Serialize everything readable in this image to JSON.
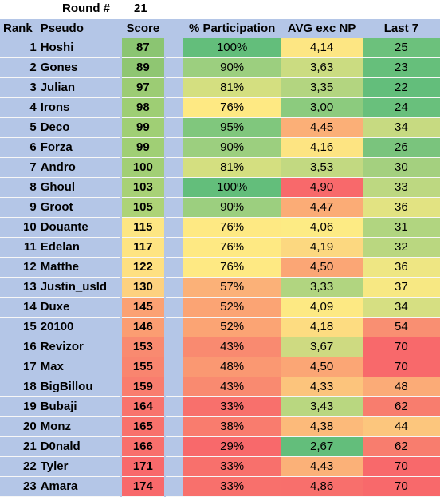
{
  "round": {
    "label": "Round #",
    "value": "21"
  },
  "columns": {
    "rank": "Rank",
    "pseudo": "Pseudo",
    "score": "Score",
    "participation": "% Participation",
    "avg": "AVG exc NP",
    "last7": "Last 7"
  },
  "rows": [
    {
      "rank": "1",
      "pseudo": "Hoshi",
      "score": "87",
      "participation": "100%",
      "avg": "4,14",
      "last7": "25",
      "score_color": "#8bc572",
      "part_color": "#63be7b",
      "avg_color": "#fde683",
      "last7_color": "#6cc17c"
    },
    {
      "rank": "2",
      "pseudo": "Gones",
      "score": "89",
      "participation": "90%",
      "avg": "3,63",
      "last7": "23",
      "score_color": "#8fc672",
      "part_color": "#9ccf7f",
      "avg_color": "#cbdc81",
      "last7_color": "#66bf7b"
    },
    {
      "rank": "3",
      "pseudo": "Julian",
      "score": "97",
      "participation": "81%",
      "avg": "3,35",
      "last7": "22",
      "score_color": "#9ccc74",
      "part_color": "#d4df80",
      "avg_color": "#b3d580",
      "last7_color": "#63be7b"
    },
    {
      "rank": "4",
      "pseudo": "Irons",
      "score": "98",
      "participation": "76%",
      "avg": "3,00",
      "last7": "24",
      "score_color": "#9ece74",
      "part_color": "#fee983",
      "avg_color": "#8ccb7e",
      "last7_color": "#69c07c"
    },
    {
      "rank": "5",
      "pseudo": "Deco",
      "score": "99",
      "participation": "95%",
      "avg": "4,45",
      "last7": "34",
      "score_color": "#a0cf75",
      "part_color": "#80c77d",
      "avg_color": "#fbaf77",
      "last7_color": "#c7da81"
    },
    {
      "rank": "6",
      "pseudo": "Forza",
      "score": "99",
      "participation": "90%",
      "avg": "4,16",
      "last7": "26",
      "score_color": "#a0cf75",
      "part_color": "#9ccf7f",
      "avg_color": "#fde482",
      "last7_color": "#7ac47d"
    },
    {
      "rank": "7",
      "pseudo": "Andro",
      "score": "100",
      "participation": "81%",
      "avg": "3,53",
      "last7": "30",
      "score_color": "#a2cf75",
      "part_color": "#d4df80",
      "avg_color": "#c2d981",
      "last7_color": "#a4d07f"
    },
    {
      "rank": "8",
      "pseudo": "Ghoul",
      "score": "103",
      "participation": "100%",
      "avg": "4,90",
      "last7": "33",
      "score_color": "#a8d176",
      "part_color": "#63be7b",
      "avg_color": "#f8696b",
      "last7_color": "#bdd881"
    },
    {
      "rank": "9",
      "pseudo": "Groot",
      "score": "105",
      "participation": "90%",
      "avg": "4,47",
      "last7": "36",
      "score_color": "#add377",
      "part_color": "#9ccf7f",
      "avg_color": "#fbac76",
      "last7_color": "#e2e382"
    },
    {
      "rank": "10",
      "pseudo": "Douante",
      "score": "115",
      "participation": "76%",
      "avg": "4,06",
      "last7": "31",
      "score_color": "#fde683",
      "part_color": "#fee983",
      "avg_color": "#fdeb84",
      "last7_color": "#b1d580"
    },
    {
      "rank": "11",
      "pseudo": "Edelan",
      "score": "117",
      "participation": "76%",
      "avg": "4,19",
      "last7": "32",
      "score_color": "#fee482",
      "part_color": "#fee983",
      "avg_color": "#fcd880",
      "last7_color": "#bad780"
    },
    {
      "rank": "12",
      "pseudo": "Matthe",
      "score": "122",
      "participation": "76%",
      "avg": "4,50",
      "last7": "36",
      "score_color": "#fee081",
      "part_color": "#fee983",
      "avg_color": "#fba675",
      "last7_color": "#eee683"
    },
    {
      "rank": "13",
      "pseudo": "Justin_usld",
      "score": "130",
      "participation": "57%",
      "avg": "3,33",
      "last7": "37",
      "score_color": "#fdd17f",
      "part_color": "#fbb178",
      "avg_color": "#b1d580",
      "last7_color": "#f7e883"
    },
    {
      "rank": "14",
      "pseudo": "Duxe",
      "score": "145",
      "participation": "52%",
      "avg": "4,09",
      "last7": "34",
      "score_color": "#fba173",
      "part_color": "#fba474",
      "avg_color": "#fde983",
      "last7_color": "#d6df82"
    },
    {
      "rank": "15",
      "pseudo": "20100",
      "score": "146",
      "participation": "52%",
      "avg": "4,18",
      "last7": "54",
      "score_color": "#fb9d72",
      "part_color": "#fba474",
      "avg_color": "#fddc81",
      "last7_color": "#f98f72"
    },
    {
      "rank": "16",
      "pseudo": "Revizor",
      "score": "153",
      "participation": "43%",
      "avg": "3,67",
      "last7": "70",
      "score_color": "#f98a70",
      "part_color": "#f98a70",
      "avg_color": "#ceda81",
      "last7_color": "#f8696b"
    },
    {
      "rank": "17",
      "pseudo": "Max",
      "score": "155",
      "participation": "48%",
      "avg": "4,50",
      "last7": "70",
      "score_color": "#f9856f",
      "part_color": "#fa9872",
      "avg_color": "#fba675",
      "last7_color": "#f8696b"
    },
    {
      "rank": "18",
      "pseudo": "BigBillou",
      "score": "159",
      "participation": "43%",
      "avg": "4,33",
      "last7": "48",
      "score_color": "#f97d6e",
      "part_color": "#f98a70",
      "avg_color": "#fcc47c",
      "last7_color": "#fbab77"
    },
    {
      "rank": "19",
      "pseudo": "Bubaji",
      "score": "164",
      "participation": "33%",
      "avg": "3,43",
      "last7": "62",
      "score_color": "#f8736d",
      "part_color": "#f8706c",
      "avg_color": "#b9d780",
      "last7_color": "#f87d6e"
    },
    {
      "rank": "20",
      "pseudo": "Monz",
      "score": "165",
      "participation": "38%",
      "avg": "4,38",
      "last7": "44",
      "score_color": "#f8716c",
      "part_color": "#f97c6e",
      "avg_color": "#fcba7a",
      "last7_color": "#fcc67d"
    },
    {
      "rank": "21",
      "pseudo": "D0nald",
      "score": "166",
      "participation": "29%",
      "avg": "2,67",
      "last7": "62",
      "score_color": "#f86f6c",
      "part_color": "#f8696b",
      "avg_color": "#63be7b",
      "last7_color": "#f87d6e"
    },
    {
      "rank": "22",
      "pseudo": "Tyler",
      "score": "171",
      "participation": "33%",
      "avg": "4,43",
      "last7": "70",
      "score_color": "#f8696b",
      "part_color": "#f8706c",
      "avg_color": "#fbb178",
      "last7_color": "#f8696b"
    },
    {
      "rank": "23",
      "pseudo": "Amara",
      "score": "174",
      "participation": "33%",
      "avg": "4,86",
      "last7": "70",
      "score_color": "#f8696b",
      "part_color": "#f8706c",
      "avg_color": "#f86f6c",
      "last7_color": "#f8696b"
    }
  ]
}
